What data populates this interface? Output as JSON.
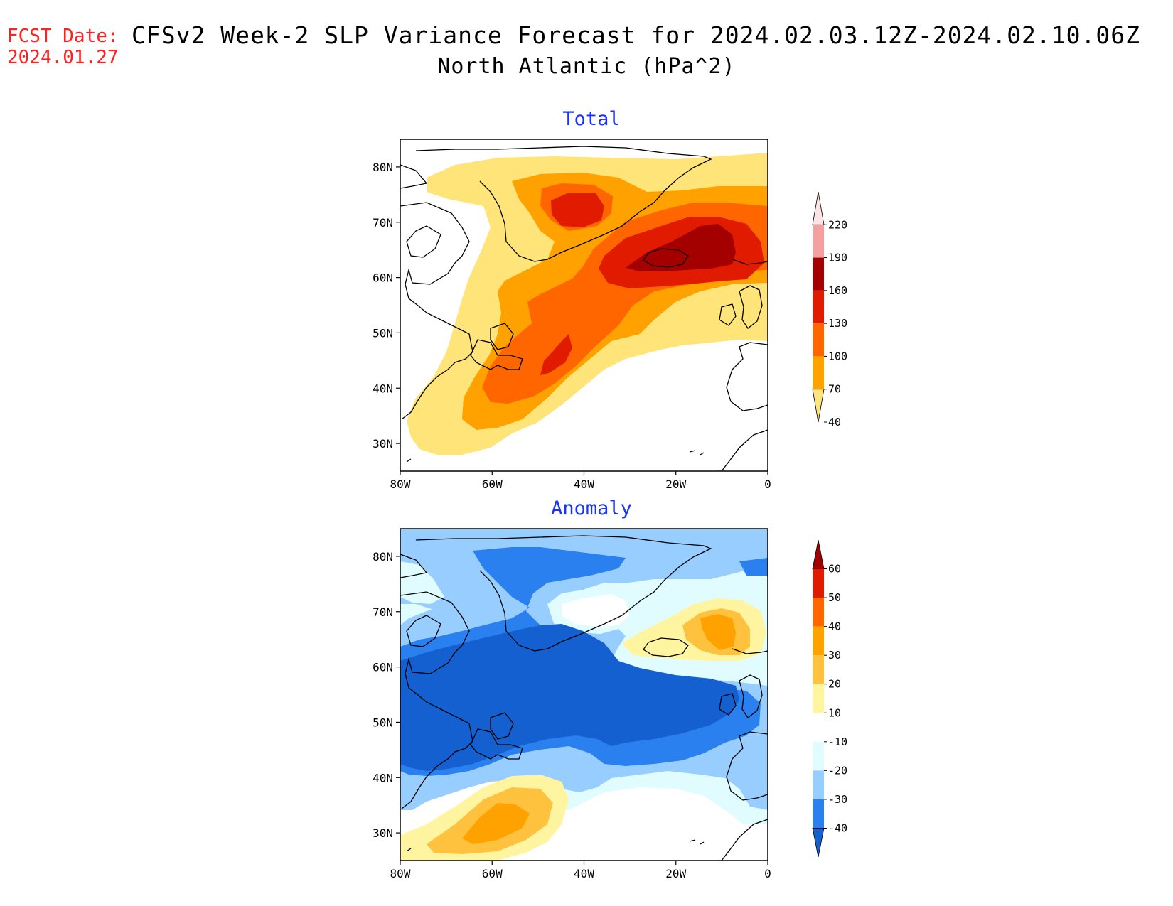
{
  "header": {
    "fcst_label": "FCST Date:",
    "fcst_date": "2024.01.27",
    "title": "CFSv2 Week-2 SLP Variance Forecast for 2024.02.03.12Z-2024.02.10.06Z",
    "subtitle": "North Atlantic (hPa^2)"
  },
  "panels": {
    "total": {
      "title": "Total",
      "colorbar_labels": [
        "220",
        "190",
        "160",
        "130",
        "100",
        "70",
        "40"
      ],
      "colorbar_colors": [
        "#fde4e4",
        "#f4a0a0",
        "#a50000",
        "#e11b00",
        "#ff6600",
        "#ffa200",
        "#ffe47a"
      ]
    },
    "anomaly": {
      "title": "Anomaly",
      "colorbar_labels": [
        "60",
        "50",
        "40",
        "30",
        "20",
        "10",
        "-10",
        "-20",
        "-30",
        "-40"
      ],
      "colorbar_colors": [
        "#a50000",
        "#e11b00",
        "#ff6600",
        "#ffa200",
        "#ffc23e",
        "#fff5a0",
        "#ffffff",
        "#e0fcff",
        "#98cdff",
        "#2a80ee",
        "#1560d0"
      ]
    }
  },
  "map_axes": {
    "lat_labels": [
      "80N",
      "70N",
      "60N",
      "50N",
      "40N",
      "30N"
    ],
    "lon_labels": [
      "80W",
      "60W",
      "40W",
      "20W",
      "0"
    ]
  },
  "colors": {
    "total_40": "#ffe47a",
    "total_70": "#ffa200",
    "total_100": "#ff6600",
    "total_130": "#e11b00",
    "total_160": "#a50000",
    "anom_neg10": "#e0fcff",
    "anom_neg20": "#98cdff",
    "anom_neg30": "#2a80ee",
    "anom_neg40": "#1560d0",
    "anom_10": "#fff5a0",
    "anom_20": "#ffc23e",
    "anom_30": "#ffa200",
    "fcst_red": "#ff2020",
    "panel_title_blue": "#1a32ff"
  }
}
